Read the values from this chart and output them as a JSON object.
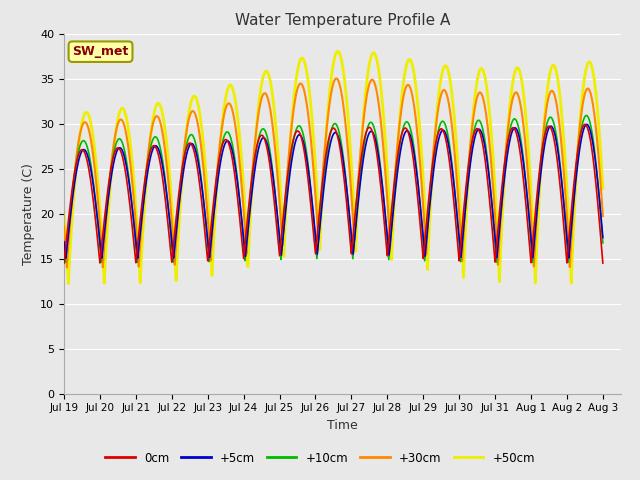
{
  "title": "Water Temperature Profile A",
  "xlabel": "Time",
  "ylabel": "Temperature (C)",
  "ylim": [
    0,
    40
  ],
  "background_color": "#e8e8e8",
  "grid_color": "white",
  "series_order": [
    "+50cm",
    "+30cm",
    "+10cm",
    "+5cm",
    "0cm"
  ],
  "series": {
    "0cm": {
      "color": "#dd0000",
      "lw": 1.2
    },
    "+5cm": {
      "color": "#0000cc",
      "lw": 1.2
    },
    "+10cm": {
      "color": "#00bb00",
      "lw": 1.2
    },
    "+30cm": {
      "color": "#ff8800",
      "lw": 1.5
    },
    "+50cm": {
      "color": "#eeee00",
      "lw": 2.0
    }
  },
  "legend_labels": [
    "0cm",
    "+5cm",
    "+10cm",
    "+30cm",
    "+50cm"
  ],
  "legend_colors": [
    "#dd0000",
    "#0000cc",
    "#00bb00",
    "#ff8800",
    "#eeee00"
  ],
  "annotation_text": "SW_met",
  "annotation_color": "#880000",
  "annotation_bg": "#ffffaa",
  "annotation_border": "#999900",
  "xtick_labels": [
    "Jul 19",
    "Jul 20",
    "Jul 21",
    "Jul 22",
    "Jul 23",
    "Jul 24",
    "Jul 25",
    "Jul 26",
    "Jul 27",
    "Jul 28",
    "Jul 29",
    "Jul 30",
    "Jul 31",
    "Aug 1",
    "Aug 2",
    "Aug 3"
  ]
}
